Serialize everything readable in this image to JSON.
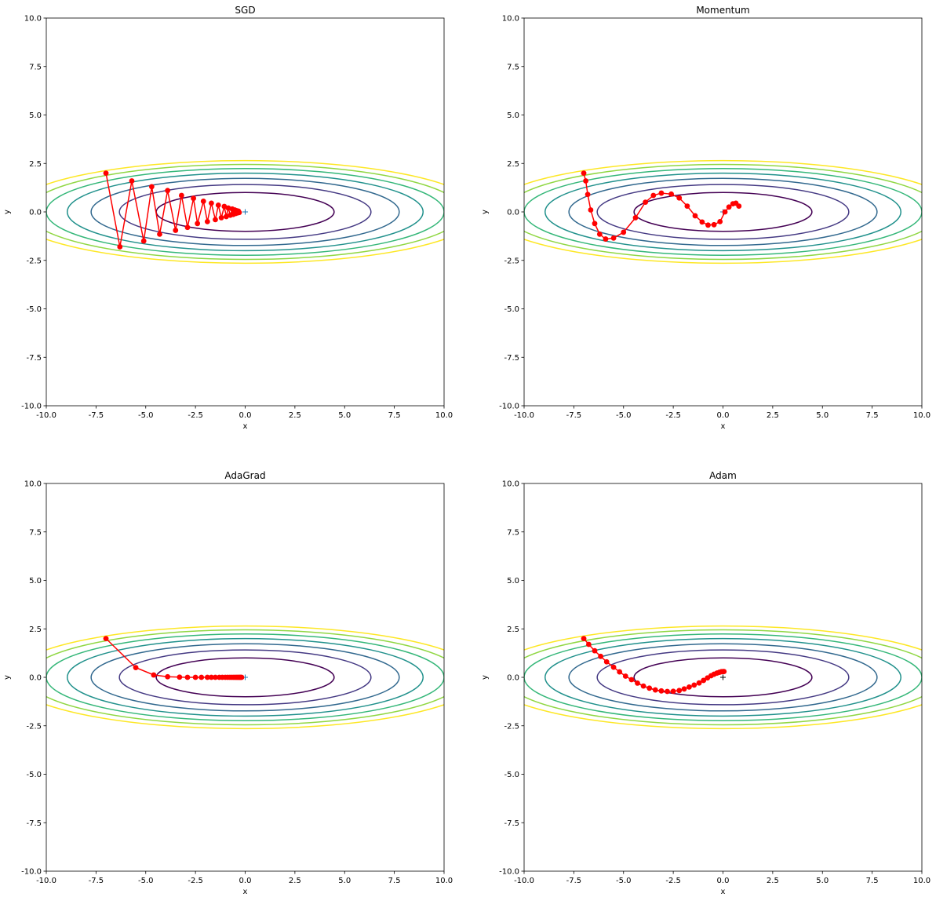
{
  "chart_data": [
    {
      "type": "line",
      "title": "SGD",
      "xlabel": "x",
      "ylabel": "y",
      "xlim": [
        -10,
        10
      ],
      "ylim": [
        -10,
        10
      ],
      "xticks": [
        "-10.0",
        "-7.5",
        "-5.0",
        "-2.5",
        "0.0",
        "2.5",
        "5.0",
        "7.5",
        "10.0"
      ],
      "yticks": [
        "10.0",
        "7.5",
        "5.0",
        "2.5",
        "0.0",
        "-2.5",
        "-5.0",
        "-7.5",
        "-10.0"
      ],
      "contour_function": "x^2/20 + y^2",
      "contour_levels": [
        1,
        2,
        3,
        4,
        5,
        6,
        7
      ],
      "contour_colors": [
        "#440154",
        "#443983",
        "#31688e",
        "#21918c",
        "#35b779",
        "#90d743",
        "#fde725"
      ],
      "path_color": "#ff0000",
      "minimum_marker": {
        "x": 0,
        "y": 0,
        "symbol": "+",
        "color": "#1f77b4"
      },
      "path": [
        [
          -7.0,
          2.0
        ],
        [
          -6.3,
          -1.8
        ],
        [
          -5.7,
          1.6
        ],
        [
          -5.1,
          -1.5
        ],
        [
          -4.7,
          1.3
        ],
        [
          -4.3,
          -1.15
        ],
        [
          -3.9,
          1.1
        ],
        [
          -3.5,
          -0.95
        ],
        [
          -3.2,
          0.85
        ],
        [
          -2.9,
          -0.8
        ],
        [
          -2.6,
          0.7
        ],
        [
          -2.4,
          -0.6
        ],
        [
          -2.1,
          0.55
        ],
        [
          -1.9,
          -0.5
        ],
        [
          -1.7,
          0.45
        ],
        [
          -1.5,
          -0.4
        ],
        [
          -1.35,
          0.35
        ],
        [
          -1.2,
          -0.3
        ],
        [
          -1.05,
          0.28
        ],
        [
          -0.95,
          -0.24
        ],
        [
          -0.85,
          0.2
        ],
        [
          -0.75,
          -0.17
        ],
        [
          -0.65,
          0.15
        ],
        [
          -0.6,
          -0.13
        ],
        [
          -0.52,
          0.1
        ],
        [
          -0.47,
          -0.08
        ],
        [
          -0.42,
          0.06
        ],
        [
          -0.38,
          -0.05
        ],
        [
          -0.34,
          0.04
        ],
        [
          -0.3,
          -0.03
        ]
      ]
    },
    {
      "type": "line",
      "title": "Momentum",
      "xlabel": "x",
      "ylabel": "y",
      "xlim": [
        -10,
        10
      ],
      "ylim": [
        -10,
        10
      ],
      "xticks": [
        "-10.0",
        "-7.5",
        "-5.0",
        "-2.5",
        "0.0",
        "2.5",
        "5.0",
        "7.5",
        "10.0"
      ],
      "yticks": [
        "10.0",
        "7.5",
        "5.0",
        "2.5",
        "0.0",
        "-2.5",
        "-5.0",
        "-7.5",
        "-10.0"
      ],
      "contour_function": "x^2/20 + y^2",
      "contour_levels": [
        1,
        2,
        3,
        4,
        5,
        6,
        7
      ],
      "contour_colors": [
        "#440154",
        "#443983",
        "#31688e",
        "#21918c",
        "#35b779",
        "#90d743",
        "#fde725"
      ],
      "path_color": "#ff0000",
      "minimum_marker": {
        "x": 0,
        "y": 0,
        "symbol": "+",
        "color": "#1f77b4"
      },
      "path": [
        [
          -7.0,
          2.0
        ],
        [
          -6.9,
          1.6
        ],
        [
          -6.8,
          0.9
        ],
        [
          -6.65,
          0.1
        ],
        [
          -6.45,
          -0.6
        ],
        [
          -6.2,
          -1.15
        ],
        [
          -5.9,
          -1.4
        ],
        [
          -5.5,
          -1.35
        ],
        [
          -5.0,
          -1.05
        ],
        [
          -4.4,
          -0.3
        ],
        [
          -3.9,
          0.5
        ],
        [
          -3.5,
          0.85
        ],
        [
          -3.1,
          0.97
        ],
        [
          -2.6,
          0.92
        ],
        [
          -2.2,
          0.72
        ],
        [
          -1.8,
          0.3
        ],
        [
          -1.4,
          -0.2
        ],
        [
          -1.05,
          -0.52
        ],
        [
          -0.75,
          -0.68
        ],
        [
          -0.45,
          -0.66
        ],
        [
          -0.15,
          -0.5
        ],
        [
          0.1,
          0.0
        ],
        [
          0.3,
          0.25
        ],
        [
          0.5,
          0.42
        ],
        [
          0.65,
          0.45
        ],
        [
          0.8,
          0.3
        ]
      ]
    },
    {
      "type": "line",
      "title": "AdaGrad",
      "xlabel": "x",
      "ylabel": "y",
      "xlim": [
        -10,
        10
      ],
      "ylim": [
        -10,
        10
      ],
      "xticks": [
        "-10.0",
        "-7.5",
        "-5.0",
        "-2.5",
        "0.0",
        "2.5",
        "5.0",
        "7.5",
        "10.0"
      ],
      "yticks": [
        "10.0",
        "7.5",
        "5.0",
        "2.5",
        "0.0",
        "-2.5",
        "-5.0",
        "-7.5",
        "-10.0"
      ],
      "contour_function": "x^2/20 + y^2",
      "contour_levels": [
        1,
        2,
        3,
        4,
        5,
        6,
        7
      ],
      "contour_colors": [
        "#440154",
        "#443983",
        "#31688e",
        "#21918c",
        "#35b779",
        "#90d743",
        "#fde725"
      ],
      "path_color": "#ff0000",
      "minimum_marker": {
        "x": 0,
        "y": 0,
        "symbol": "+",
        "color": "#1f77b4"
      },
      "path": [
        [
          -7.0,
          2.0
        ],
        [
          -5.5,
          0.5
        ],
        [
          -4.6,
          0.12
        ],
        [
          -3.9,
          0.03
        ],
        [
          -3.3,
          0.01
        ],
        [
          -2.9,
          0.0
        ],
        [
          -2.5,
          0.0
        ],
        [
          -2.2,
          0.0
        ],
        [
          -1.9,
          0.0
        ],
        [
          -1.7,
          0.0
        ],
        [
          -1.5,
          0.0
        ],
        [
          -1.3,
          0.0
        ],
        [
          -1.15,
          0.0
        ],
        [
          -1.0,
          0.0
        ],
        [
          -0.88,
          0.0
        ],
        [
          -0.77,
          0.0
        ],
        [
          -0.67,
          0.0
        ],
        [
          -0.58,
          0.0
        ],
        [
          -0.5,
          0.0
        ],
        [
          -0.43,
          0.0
        ],
        [
          -0.37,
          0.0
        ],
        [
          -0.31,
          0.0
        ],
        [
          -0.26,
          0.0
        ],
        [
          -0.22,
          0.0
        ],
        [
          -0.18,
          0.0
        ]
      ]
    },
    {
      "type": "line",
      "title": "Adam",
      "xlabel": "x",
      "ylabel": "y",
      "xlim": [
        -10,
        10
      ],
      "ylim": [
        -10,
        10
      ],
      "xticks": [
        "-10.0",
        "-7.5",
        "-5.0",
        "-2.5",
        "0.0",
        "2.5",
        "5.0",
        "7.5",
        "10.0"
      ],
      "yticks": [
        "10.0",
        "7.5",
        "5.0",
        "2.5",
        "0.0",
        "-2.5",
        "-5.0",
        "-7.5",
        "-10.0"
      ],
      "contour_function": "x^2/20 + y^2",
      "contour_levels": [
        1,
        2,
        3,
        4,
        5,
        6,
        7
      ],
      "contour_colors": [
        "#440154",
        "#443983",
        "#31688e",
        "#21918c",
        "#35b779",
        "#90d743",
        "#fde725"
      ],
      "path_color": "#ff0000",
      "minimum_marker": {
        "x": 0,
        "y": 0,
        "symbol": "+",
        "color": "#000000"
      },
      "path": [
        [
          -7.0,
          2.0
        ],
        [
          -6.75,
          1.7
        ],
        [
          -6.45,
          1.37
        ],
        [
          -6.15,
          1.08
        ],
        [
          -5.85,
          0.8
        ],
        [
          -5.5,
          0.52
        ],
        [
          -5.2,
          0.28
        ],
        [
          -4.9,
          0.06
        ],
        [
          -4.6,
          -0.12
        ],
        [
          -4.3,
          -0.3
        ],
        [
          -4.0,
          -0.45
        ],
        [
          -3.7,
          -0.56
        ],
        [
          -3.4,
          -0.65
        ],
        [
          -3.1,
          -0.7
        ],
        [
          -2.8,
          -0.73
        ],
        [
          -2.5,
          -0.72
        ],
        [
          -2.2,
          -0.68
        ],
        [
          -1.95,
          -0.6
        ],
        [
          -1.7,
          -0.5
        ],
        [
          -1.45,
          -0.4
        ],
        [
          -1.2,
          -0.29
        ],
        [
          -0.98,
          -0.16
        ],
        [
          -0.78,
          -0.03
        ],
        [
          -0.6,
          0.08
        ],
        [
          -0.45,
          0.16
        ],
        [
          -0.3,
          0.22
        ],
        [
          -0.18,
          0.26
        ],
        [
          -0.08,
          0.29
        ],
        [
          0.0,
          0.3
        ],
        [
          0.05,
          0.3
        ]
      ]
    }
  ]
}
